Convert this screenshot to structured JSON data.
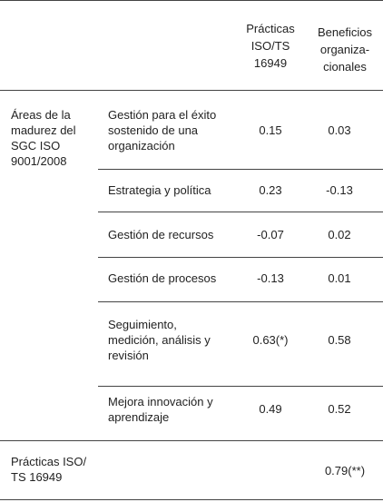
{
  "header": {
    "col_practicas": [
      "Prácticas",
      "ISO/TS",
      "16949"
    ],
    "col_beneficios": [
      "Beneficios",
      "organiza-",
      "cionales"
    ]
  },
  "section_areas": {
    "label": [
      "Áreas de la",
      "madurez del",
      "SGC ISO",
      "9001/2008"
    ],
    "rows": [
      {
        "label": [
          "Gestión para el éxito",
          "sostenido de una",
          "organización"
        ],
        "practicas": "0.15",
        "beneficios": "0.03"
      },
      {
        "label": [
          "Estrategia y política"
        ],
        "practicas": "0.23",
        "beneficios": "-0.13"
      },
      {
        "label": [
          "Gestión de recursos"
        ],
        "practicas": "-0.07",
        "beneficios": "0.02"
      },
      {
        "label": [
          "Gestión de procesos"
        ],
        "practicas": "-0.13",
        "beneficios": "0.01"
      },
      {
        "label": [
          "Seguimiento,",
          "medición, análisis y",
          "revisión"
        ],
        "practicas": "0.63(*)",
        "beneficios": "0.58"
      },
      {
        "label": [
          "Mejora innovación y",
          "aprendizaje"
        ],
        "practicas": "0.49",
        "beneficios": "0.52"
      }
    ]
  },
  "section_practicas": {
    "label": [
      "Prácticas ISO/",
      "TS 16949"
    ],
    "practicas": "",
    "beneficios": "0.79(**)"
  }
}
